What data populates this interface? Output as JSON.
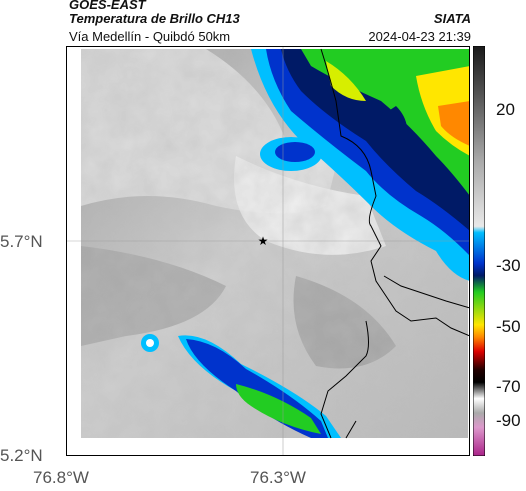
{
  "header": {
    "source": "GOES-EAST",
    "product": "Temperatura de Brillo CH13",
    "route": "Vía Medellín - Quibdó 50km",
    "org": "SIATA",
    "datetime": "2024-04-23 21:39"
  },
  "map": {
    "lat_labels": [
      "5.7°N",
      "5.2°N"
    ],
    "lon_labels": [
      "76.8°W",
      "76.3°W"
    ],
    "marker": "star",
    "gridlines": true
  },
  "colorbar": {
    "tick_labels": [
      "20",
      "-30",
      "-50",
      "-70",
      "-90"
    ],
    "ticks": [
      20,
      -30,
      -50,
      -70,
      -90
    ],
    "colors": {
      "warm": "#f2f2f2",
      "mid_gray": "#8c8c8c",
      "dark": "#1a1a1a",
      "cyan": "#00bfff",
      "blue": "#0033cc",
      "navy": "#001a66",
      "green": "#22cc22",
      "yellow": "#ffe600",
      "orange": "#ff8800",
      "red": "#dd0000",
      "magenta": "#cc44aa"
    }
  }
}
